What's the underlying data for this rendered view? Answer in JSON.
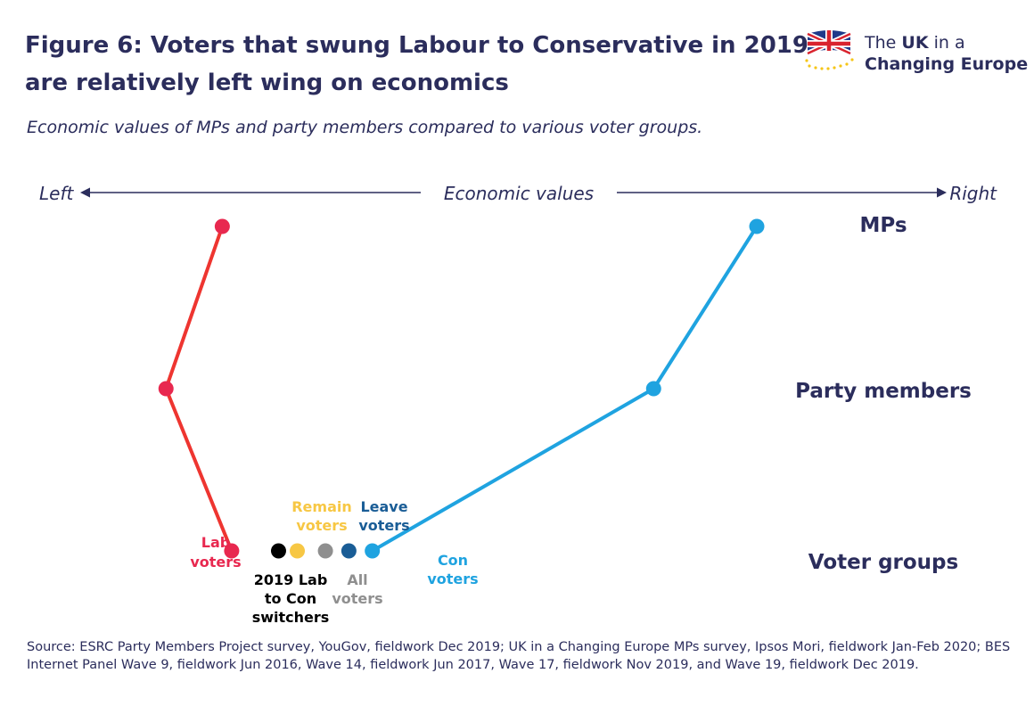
{
  "header": {
    "title_line1": "Figure 6: Voters that swung Labour to Conservative in 2019",
    "title_line2": "are relatively left wing on economics",
    "subtitle": "Economic values of MPs and party members compared to various voter groups."
  },
  "logo": {
    "line1_prefix": "The ",
    "line1_bold": "UK",
    "line1_suffix": " in a",
    "line2": "Changing Europe",
    "icon": "union-flag-eu-stars-icon"
  },
  "chart_data": {
    "type": "line",
    "axis": {
      "label": "Economic values",
      "left_label": "Left",
      "right_label": "Right",
      "direction": "left-to-right arrows"
    },
    "rows": [
      "MPs",
      "Party members",
      "Voter groups"
    ],
    "series": [
      {
        "name": "Labour",
        "color": "#ee3530",
        "marker_color": "#e8284f",
        "points": [
          {
            "row": "MPs",
            "value": 0.18
          },
          {
            "row": "Party members",
            "value": 0.12
          },
          {
            "row": "Voter groups",
            "value": 0.19,
            "label": "Lab voters"
          }
        ]
      },
      {
        "name": "Conservative",
        "color": "#1fa3e0",
        "marker_color": "#1fa3e0",
        "points": [
          {
            "row": "MPs",
            "value": 0.75
          },
          {
            "row": "Party members",
            "value": 0.64
          },
          {
            "row": "Voter groups",
            "value": 0.34,
            "label": "Con voters"
          }
        ]
      }
    ],
    "voter_points": [
      {
        "label": "2019 Lab to Con switchers",
        "value": 0.24,
        "color": "#000000"
      },
      {
        "label": "Remain voters",
        "value": 0.26,
        "color": "#f7c744"
      },
      {
        "label": "All voters",
        "value": 0.29,
        "color": "#8f8f8f"
      },
      {
        "label": "Leave voters",
        "value": 0.315,
        "color": "#1a5d96"
      }
    ]
  },
  "labels": {
    "lab_voters_1": "Lab",
    "lab_voters_2": "voters",
    "con_voters_1": "Con",
    "con_voters_2": "voters",
    "switchers_1": "2019 Lab",
    "switchers_2": "to Con",
    "switchers_3": "switchers",
    "remain_1": "Remain",
    "remain_2": "voters",
    "all_1": "All",
    "all_2": "voters",
    "leave_1": "Leave",
    "leave_2": "voters"
  },
  "source": "Source: ESRC Party Members Project survey, YouGov, fieldwork Dec 2019; UK in a Changing Europe MPs survey, Ipsos Mori, fieldwork Jan-Feb 2020; BES Internet Panel Wave 9, fieldwork Jun 2016, Wave 14, fieldwork Jun 2017, Wave 17, fieldwork Nov 2019, and Wave 19, fieldwork Dec 2019."
}
